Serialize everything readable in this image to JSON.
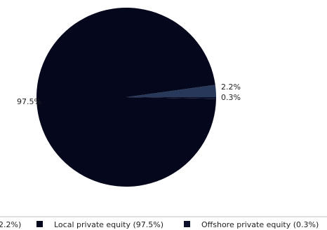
{
  "chart_data": {
    "type": "pie",
    "title": "",
    "slices": [
      {
        "label": "Local private equity",
        "value": 97.5,
        "pct_label": "97.5%",
        "legend": "Local private equity (97.5%)",
        "color": "#05071c"
      },
      {
        "label": "",
        "value": 2.2,
        "pct_label": "2.2%",
        "legend": "2.2%)",
        "color": "#27385b"
      },
      {
        "label": "Offshore private equity",
        "value": 0.3,
        "pct_label": "0.3%",
        "legend": "Offshore private equity (0.3%)",
        "color": "#0b0f2a"
      }
    ],
    "legend_position": "bottom"
  }
}
